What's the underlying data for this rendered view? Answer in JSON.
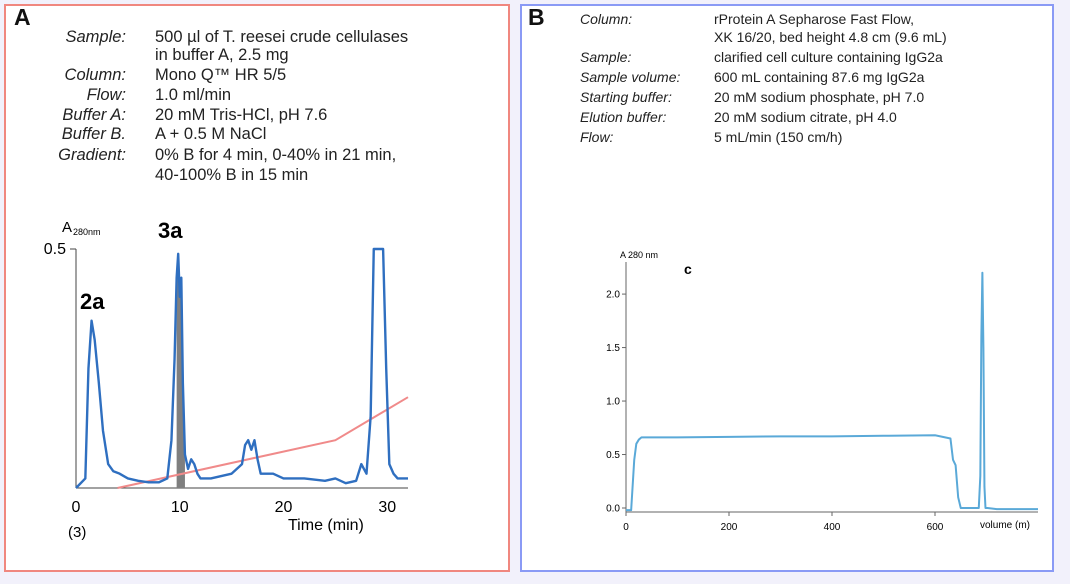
{
  "panelA": {
    "letter": "A",
    "params": [
      {
        "label": "Sample:",
        "lines": [
          "500 µl of T. reesei crude cellulases",
          "in buffer A, 2.5 mg"
        ]
      },
      {
        "label": "Column:",
        "lines": [
          "Mono Q™ HR 5/5"
        ]
      },
      {
        "label": "Flow:",
        "lines": [
          "1.0 ml/min"
        ]
      },
      {
        "label": "Buffer A:",
        "lines": [
          "20 mM Tris-HCl, pH 7.6"
        ]
      },
      {
        "label": "Buffer B.",
        "lines": [
          "A + 0.5 M NaCl"
        ]
      },
      {
        "label": "Gradient:",
        "lines": [
          "0% B for 4 min, 0-40% in 21 min,",
          "40-100% B in 15 min"
        ]
      }
    ],
    "ylabel": "A",
    "ylabel_sub": "280nm",
    "peak_labels": [
      "2a",
      "3a"
    ],
    "footnote": "(3)",
    "colors": {
      "trace": "#2f6fc0",
      "gradient": "#f08a8a",
      "fill": "#7f7f7f"
    }
  },
  "panelB": {
    "letter": "B",
    "params": [
      {
        "label": "Column:",
        "lines": [
          "rProtein A Sepharose Fast Flow,",
          "XK 16/20, bed height 4.8 cm (9.6 mL)"
        ]
      },
      {
        "label": "Sample:",
        "lines": [
          "clarified cell culture containing IgG2a"
        ]
      },
      {
        "label": "Sample volume:",
        "lines": [
          "600 mL containing 87.6 mg IgG2a"
        ]
      },
      {
        "label": "Starting buffer:",
        "lines": [
          "20 mM sodium phosphate, pH 7.0"
        ]
      },
      {
        "label": "Elution buffer:",
        "lines": [
          "20 mM sodium citrate, pH 4.0"
        ]
      },
      {
        "label": "Flow:",
        "lines": [
          "5 mL/min (150 cm/h)"
        ]
      }
    ],
    "ylabel": "A 280 nm",
    "panel_tag": "c",
    "colors": {
      "trace": "#5aa9d8"
    }
  },
  "chart_data": [
    {
      "type": "line",
      "xlabel": "Time (min)",
      "ylabel": "A280nm",
      "xlim": [
        0,
        32
      ],
      "ylim": [
        0,
        0.5
      ],
      "xticks": [
        0,
        10,
        20,
        30
      ],
      "yticks": [
        0.5
      ],
      "series": [
        {
          "values_x": [
            0,
            0.9,
            1.2,
            1.5,
            1.8,
            2.2,
            2.6,
            3.1,
            3.6,
            4.2,
            5,
            6,
            7,
            8,
            8.8,
            9.2,
            9.5,
            9.7,
            9.85,
            10,
            10.15,
            10.3,
            10.5,
            10.8,
            11.1,
            11.4,
            11.7,
            12,
            13,
            14,
            15,
            16,
            16.3,
            16.6,
            16.9,
            17.2,
            17.5,
            17.8,
            18.2,
            19,
            20,
            22,
            24,
            25,
            26,
            27,
            27.5,
            28,
            28.4,
            28.7,
            29,
            29.6,
            29.9,
            30.2,
            30.6,
            31,
            32
          ],
          "values_y": [
            0,
            0.02,
            0.25,
            0.35,
            0.31,
            0.22,
            0.12,
            0.05,
            0.035,
            0.03,
            0.02,
            0.015,
            0.012,
            0.012,
            0.02,
            0.1,
            0.27,
            0.44,
            0.49,
            0.4,
            0.44,
            0.22,
            0.07,
            0.04,
            0.06,
            0.05,
            0.03,
            0.02,
            0.02,
            0.025,
            0.03,
            0.05,
            0.09,
            0.1,
            0.08,
            0.1,
            0.06,
            0.03,
            0.03,
            0.03,
            0.02,
            0.02,
            0.015,
            0.02,
            0.01,
            0.015,
            0.05,
            0.03,
            0.15,
            0.5,
            0.5,
            0.5,
            0.25,
            0.05,
            0.03,
            0.02,
            0.02
          ]
        },
        {
          "values_x": [
            4,
            25,
            32
          ],
          "values_y": [
            0,
            0.1,
            0.19
          ]
        }
      ],
      "shaded_range": [
        9.7,
        10.5
      ],
      "grid": false
    },
    {
      "type": "line",
      "xlabel": "volume (m)",
      "ylabel": "A 280 nm",
      "xlim": [
        0,
        800
      ],
      "ylim": [
        0,
        2.3
      ],
      "xticks": [
        0,
        200,
        400,
        600
      ],
      "yticks": [
        0.0,
        0.5,
        1.0,
        1.5,
        2.0
      ],
      "series": [
        {
          "values_x": [
            0,
            10,
            16,
            20,
            25,
            30,
            50,
            100,
            200,
            300,
            400,
            500,
            600,
            630,
            635,
            640,
            645,
            650,
            660,
            670,
            680,
            685,
            688,
            690,
            692,
            694,
            696,
            698,
            702,
            720,
            750,
            800
          ],
          "values_y": [
            -0.02,
            -0.02,
            0.45,
            0.6,
            0.64,
            0.66,
            0.66,
            0.66,
            0.665,
            0.67,
            0.67,
            0.675,
            0.68,
            0.65,
            0.45,
            0.4,
            0.1,
            0.0,
            0.0,
            0.0,
            0.0,
            0.0,
            0.3,
            1.6,
            2.2,
            1.5,
            0.2,
            0.0,
            0.0,
            -0.01,
            -0.01,
            -0.01
          ]
        }
      ],
      "grid": false
    }
  ]
}
